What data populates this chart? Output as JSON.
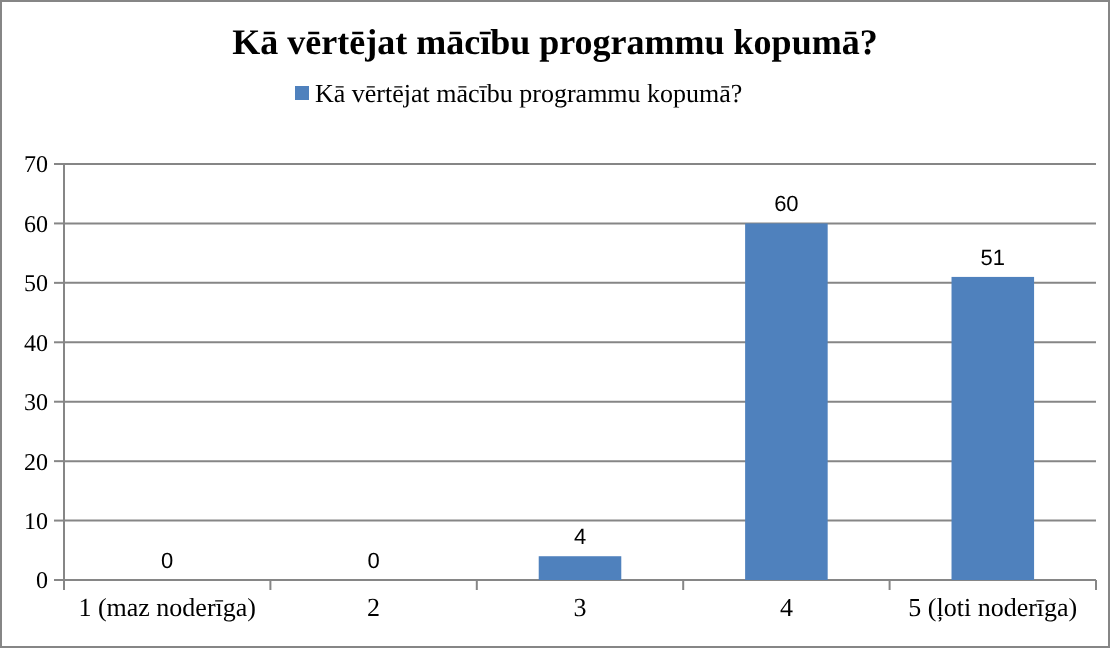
{
  "chart_data": {
    "type": "bar",
    "title": "Kā vērtējat mācību programmu kopumā?",
    "categories": [
      "1 (maz noderīga)",
      "2",
      "3",
      "4",
      "5 (ļoti noderīga)"
    ],
    "series": [
      {
        "name": "Kā vērtējat mācību programmu kopumā?",
        "color": "#4f81bd",
        "values": [
          0,
          0,
          4,
          60,
          51
        ]
      }
    ],
    "ylim": [
      0,
      70
    ],
    "yticks": [
      0,
      10,
      20,
      30,
      40,
      50,
      60,
      70
    ],
    "grid": "y",
    "legend": "top",
    "data_labels": true
  }
}
